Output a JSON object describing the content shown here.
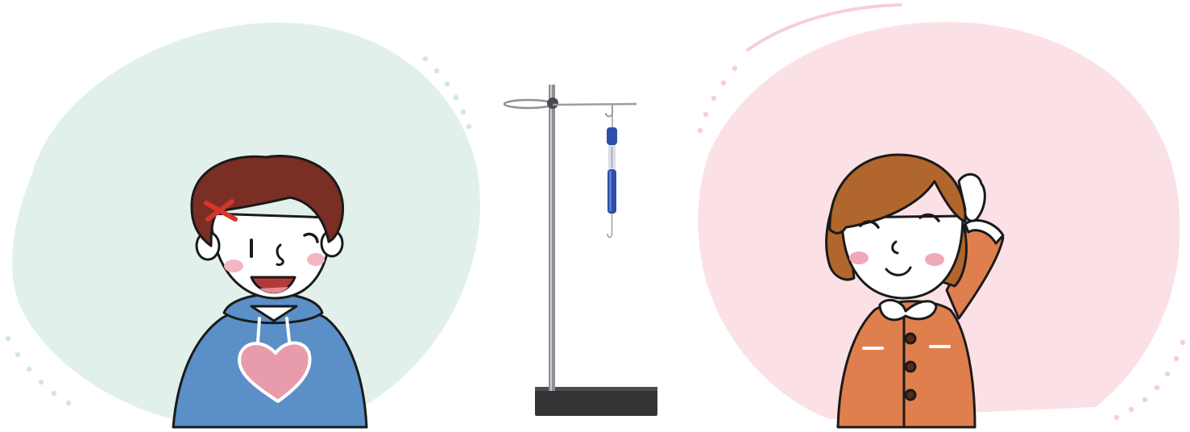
{
  "scene": {
    "left_panel": {
      "figure": "boy-in-blue-hoodie",
      "blob_color": "#e2f0ec",
      "dot_color": "#cfe8e0"
    },
    "center": {
      "figure": "retort-stand-with-spring-scale",
      "scale_color": "#2d4fa6"
    },
    "right_panel": {
      "figure": "girl-in-orange-jacket",
      "blob_color": "#fbe1e6",
      "dot_color": "#f6cfd6"
    }
  }
}
